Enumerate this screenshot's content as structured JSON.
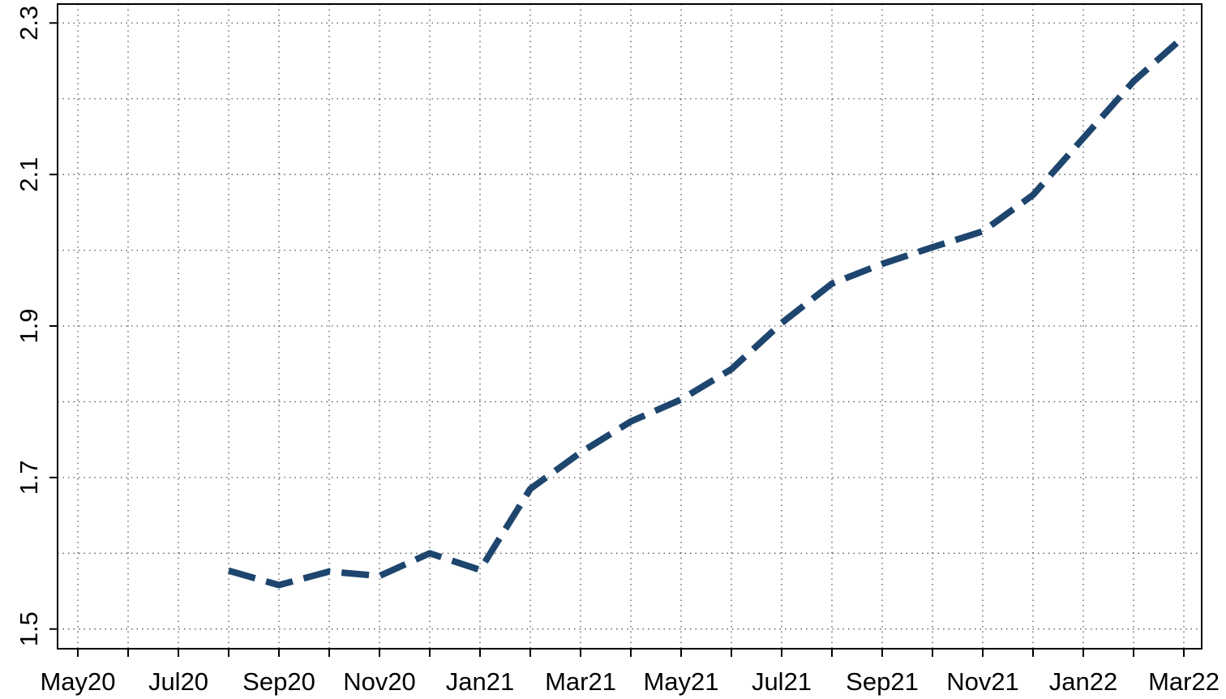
{
  "chart_data": {
    "type": "line",
    "categories": [
      "May20",
      null,
      "Jul20",
      null,
      "Sep20",
      null,
      "Nov20",
      null,
      "Jan21",
      null,
      "Mar21",
      null,
      "May21",
      null,
      "Jul21",
      null,
      "Sep21",
      null,
      "Nov21",
      null,
      "Jan22",
      null,
      "Mar22"
    ],
    "series": [
      {
        "color": "#1d456e",
        "values": [
          null,
          null,
          null,
          1.577,
          1.558,
          1.576,
          1.57,
          1.6,
          1.578,
          1.685,
          1.733,
          1.774,
          1.803,
          1.843,
          1.904,
          1.956,
          1.982,
          2.004,
          2.025,
          2.073,
          2.148,
          2.223,
          2.282
        ]
      }
    ],
    "ylim": [
      1.474,
      2.325
    ],
    "yticks": [
      1.5,
      1.7,
      1.9,
      2.1,
      2.3
    ],
    "ygrid": [
      1.5,
      1.6,
      1.7,
      1.8,
      1.9,
      2.0,
      2.1,
      2.2,
      2.3
    ],
    "grid": true
  }
}
